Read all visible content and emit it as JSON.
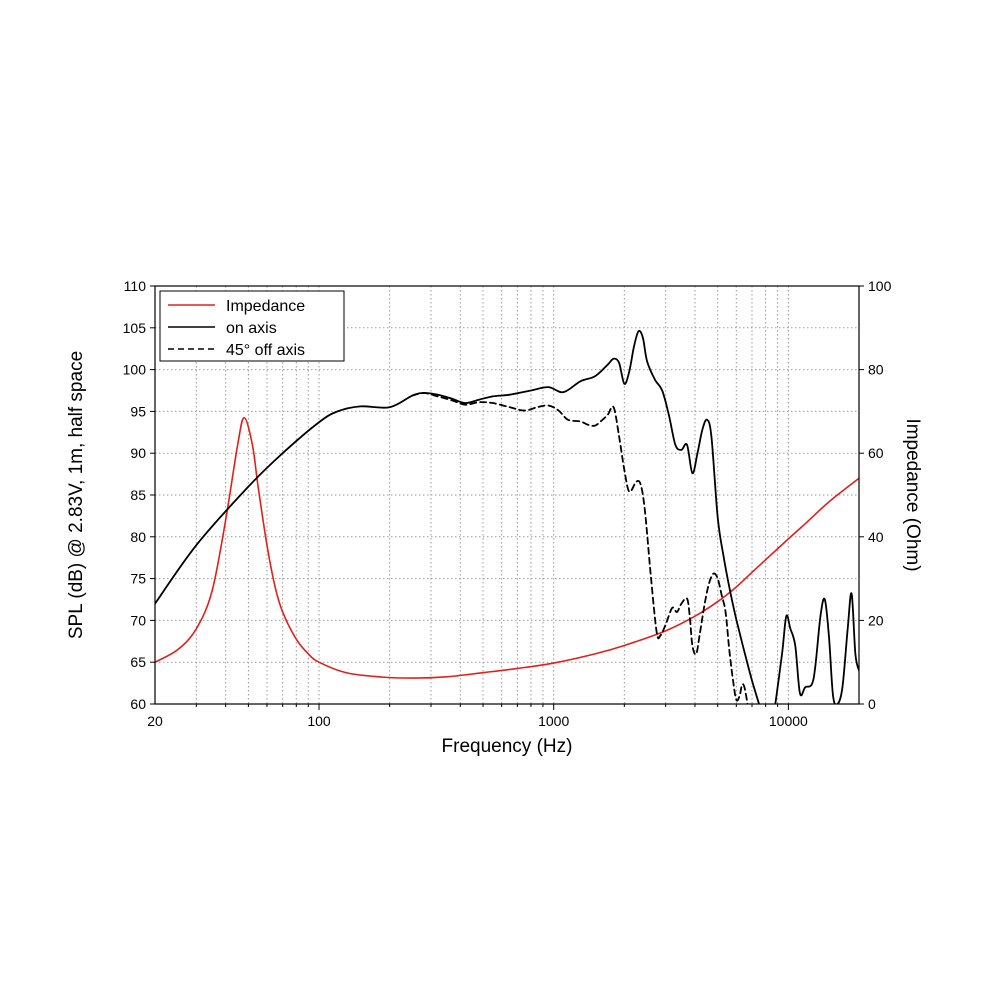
{
  "chart_data": {
    "type": "line",
    "x_scale": "log",
    "xlabel": "Frequency (Hz)",
    "ylabel_left": "SPL (dB) @ 2.83V, 1m, half space",
    "ylabel_right": "Impedance (Ohm)",
    "xlim": [
      20,
      20000
    ],
    "ylim_left": [
      60,
      110
    ],
    "ylim_right": [
      0,
      100
    ],
    "x_ticks": [
      20,
      100,
      1000,
      10000
    ],
    "x_tick_labels": [
      "20",
      "100",
      "1000",
      "10000"
    ],
    "y_left_ticks": [
      60,
      65,
      70,
      75,
      80,
      85,
      90,
      95,
      100,
      105,
      110
    ],
    "y_right_ticks": [
      0,
      20,
      40,
      60,
      80,
      100
    ],
    "grid": true,
    "legend_position": "top-left",
    "colors": {
      "impedance": "#e0201b",
      "on_axis": "#000000",
      "off_axis": "#000000"
    },
    "series": [
      {
        "name": "Impedance",
        "axis": "right",
        "style": "solid",
        "color": "#e0201b",
        "points": [
          [
            20,
            10
          ],
          [
            25,
            13
          ],
          [
            30,
            18
          ],
          [
            35,
            27
          ],
          [
            40,
            44
          ],
          [
            45,
            62
          ],
          [
            48,
            68.5
          ],
          [
            52,
            62
          ],
          [
            55,
            52
          ],
          [
            60,
            38
          ],
          [
            65,
            28
          ],
          [
            70,
            22
          ],
          [
            80,
            15.5
          ],
          [
            90,
            12
          ],
          [
            100,
            10
          ],
          [
            130,
            7.5
          ],
          [
            180,
            6.5
          ],
          [
            250,
            6.2
          ],
          [
            350,
            6.5
          ],
          [
            500,
            7.5
          ],
          [
            700,
            8.5
          ],
          [
            1000,
            9.8
          ],
          [
            1500,
            12
          ],
          [
            2000,
            14
          ],
          [
            3000,
            17.5
          ],
          [
            4000,
            21
          ],
          [
            5000,
            24.5
          ],
          [
            6000,
            28
          ],
          [
            7000,
            31.5
          ],
          [
            8000,
            34.5
          ],
          [
            10000,
            39.5
          ],
          [
            12000,
            43.5
          ],
          [
            15000,
            48.5
          ],
          [
            20000,
            54
          ]
        ]
      },
      {
        "name": "on axis",
        "axis": "left",
        "style": "solid",
        "color": "#000000",
        "points": [
          [
            20,
            72
          ],
          [
            30,
            79
          ],
          [
            50,
            86
          ],
          [
            70,
            90
          ],
          [
            100,
            93.7
          ],
          [
            120,
            95
          ],
          [
            150,
            95.6
          ],
          [
            200,
            95.5
          ],
          [
            250,
            96.9
          ],
          [
            280,
            97.2
          ],
          [
            320,
            97
          ],
          [
            370,
            96.5
          ],
          [
            420,
            96
          ],
          [
            480,
            96.4
          ],
          [
            550,
            96.8
          ],
          [
            650,
            97
          ],
          [
            800,
            97.5
          ],
          [
            950,
            97.9
          ],
          [
            1100,
            97.3
          ],
          [
            1300,
            98.6
          ],
          [
            1500,
            99.2
          ],
          [
            1700,
            100.6
          ],
          [
            1800,
            101.3
          ],
          [
            1900,
            100.8
          ],
          [
            2000,
            98.3
          ],
          [
            2100,
            99.8
          ],
          [
            2200,
            102.8
          ],
          [
            2300,
            104.6
          ],
          [
            2400,
            103.8
          ],
          [
            2500,
            101
          ],
          [
            2700,
            98.8
          ],
          [
            2900,
            97.5
          ],
          [
            3100,
            94.5
          ],
          [
            3300,
            91
          ],
          [
            3500,
            90.4
          ],
          [
            3700,
            91
          ],
          [
            3900,
            87.6
          ],
          [
            4100,
            90
          ],
          [
            4300,
            92.8
          ],
          [
            4500,
            94
          ],
          [
            4700,
            92
          ],
          [
            5000,
            82.3
          ],
          [
            5300,
            77.6
          ],
          [
            5600,
            74
          ],
          [
            5900,
            71
          ],
          [
            6200,
            68.5
          ],
          [
            6600,
            65.5
          ],
          [
            7000,
            62.8
          ],
          [
            7500,
            60
          ]
        ]
      },
      {
        "name": "on axis",
        "axis": "left",
        "style": "solid",
        "color": "#000000",
        "points": [
          [
            8800,
            60
          ],
          [
            9400,
            66
          ],
          [
            9800,
            70.5
          ],
          [
            10200,
            69
          ],
          [
            10700,
            67
          ],
          [
            11200,
            61.3
          ],
          [
            11800,
            62
          ],
          [
            12800,
            63
          ],
          [
            13700,
            70.5
          ],
          [
            14300,
            72.5
          ],
          [
            14900,
            68
          ],
          [
            15500,
            61
          ],
          [
            16200,
            60
          ],
          [
            17000,
            62
          ],
          [
            17900,
            69
          ],
          [
            18600,
            73.2
          ],
          [
            19300,
            66
          ],
          [
            20000,
            64
          ]
        ]
      },
      {
        "name": "45° off axis",
        "axis": "left",
        "style": "dashed",
        "color": "#000000",
        "points": [
          [
            250,
            96.9
          ],
          [
            280,
            97.2
          ],
          [
            320,
            96.8
          ],
          [
            370,
            96.3
          ],
          [
            420,
            95.8
          ],
          [
            480,
            96.1
          ],
          [
            550,
            96
          ],
          [
            650,
            95.5
          ],
          [
            750,
            95.1
          ],
          [
            850,
            95.5
          ],
          [
            950,
            95.7
          ],
          [
            1050,
            95.1
          ],
          [
            1150,
            94
          ],
          [
            1300,
            93.8
          ],
          [
            1400,
            93.4
          ],
          [
            1500,
            93.3
          ],
          [
            1600,
            93.9
          ],
          [
            1700,
            94.6
          ],
          [
            1800,
            95.5
          ],
          [
            1900,
            92
          ],
          [
            2000,
            88
          ],
          [
            2100,
            85.4
          ],
          [
            2250,
            86.6
          ],
          [
            2350,
            86.2
          ],
          [
            2450,
            83
          ],
          [
            2600,
            75
          ],
          [
            2750,
            68.5
          ],
          [
            2850,
            68.2
          ],
          [
            3000,
            69.5
          ],
          [
            3200,
            71.5
          ],
          [
            3350,
            71
          ],
          [
            3500,
            72
          ],
          [
            3700,
            72.6
          ],
          [
            3800,
            70.5
          ],
          [
            3900,
            67
          ],
          [
            4050,
            66
          ],
          [
            4200,
            68.5
          ],
          [
            4400,
            72
          ],
          [
            4600,
            74.5
          ],
          [
            4800,
            75.6
          ],
          [
            5000,
            75
          ],
          [
            5200,
            73
          ],
          [
            5400,
            71
          ],
          [
            5600,
            66.5
          ],
          [
            5800,
            63
          ],
          [
            6000,
            60.5
          ],
          [
            6200,
            61
          ],
          [
            6350,
            62.3
          ],
          [
            6500,
            62
          ],
          [
            6700,
            60
          ]
        ]
      }
    ]
  },
  "legend": {
    "items": [
      {
        "label": "Impedance",
        "color": "#e0201b",
        "style": "solid"
      },
      {
        "label": "on axis",
        "color": "#000000",
        "style": "solid"
      },
      {
        "label": "45° off axis",
        "color": "#000000",
        "style": "dashed"
      }
    ]
  }
}
